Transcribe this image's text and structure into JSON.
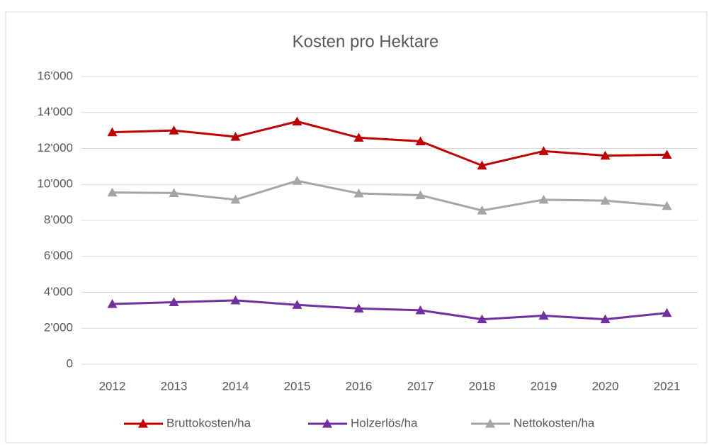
{
  "chart_data": {
    "type": "line",
    "title": "Kosten pro Hektare",
    "categories": [
      "2012",
      "2013",
      "2014",
      "2015",
      "2016",
      "2017",
      "2018",
      "2019",
      "2020",
      "2021"
    ],
    "series": [
      {
        "name": "Bruttokosten/ha",
        "color": "#c00000",
        "values": [
          12900,
          13000,
          12650,
          13500,
          12600,
          12400,
          11050,
          11850,
          11600,
          11650
        ]
      },
      {
        "name": "Holzerlös/ha",
        "color": "#7030a0",
        "values": [
          3350,
          3450,
          3550,
          3300,
          3100,
          3000,
          2500,
          2700,
          2500,
          2850
        ]
      },
      {
        "name": "Nettokosten/ha",
        "color": "#a5a5a5",
        "values": [
          9550,
          9520,
          9150,
          10200,
          9500,
          9400,
          8550,
          9150,
          9100,
          8800
        ]
      }
    ],
    "ylim": [
      0,
      16000
    ],
    "yticks": [
      0,
      {
        "value": 2000,
        "label": "2'000"
      },
      {
        "value": 4000,
        "label": "4'000"
      },
      {
        "value": 6000,
        "label": "6'000"
      },
      {
        "value": 8000,
        "label": "8'000"
      },
      {
        "value": 10000,
        "label": "10'000"
      },
      {
        "value": 12000,
        "label": "12'000"
      },
      {
        "value": 14000,
        "label": "14'000"
      },
      {
        "value": 16000,
        "label": "16'000"
      }
    ],
    "grid": true,
    "legend": "bottom"
  }
}
